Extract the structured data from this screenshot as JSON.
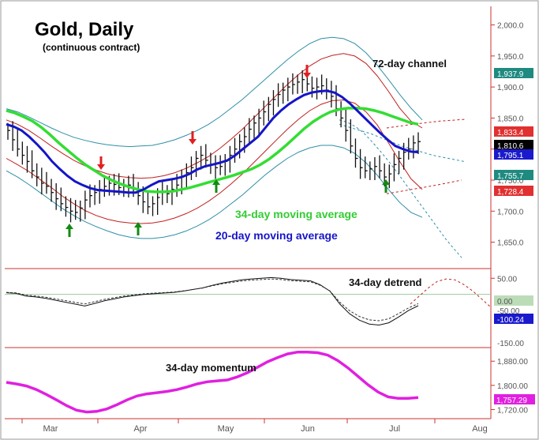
{
  "chart_data": {
    "type": "line",
    "title": "Gold, Daily",
    "subtitle": "(continuous contract)",
    "x_months": [
      "Mar",
      "Apr",
      "May",
      "Jun",
      "Jul",
      "Aug"
    ],
    "price_panel": {
      "ylim": [
        1610,
        2030
      ],
      "y_ticks": [
        "2,000.0",
        "1,950.0",
        "1,900.0",
        "1,850.0",
        "1,800.0",
        "1,750.0",
        "1,700.0",
        "1,650.0"
      ],
      "y_tick_values": [
        2000,
        1950,
        1900,
        1850,
        1800,
        1750,
        1700,
        1650
      ],
      "close_series": [
        1830,
        1815,
        1800,
        1790,
        1780,
        1765,
        1755,
        1745,
        1740,
        1730,
        1720,
        1712,
        1706,
        1700,
        1698,
        1705,
        1718,
        1725,
        1730,
        1735,
        1740,
        1745,
        1743,
        1738,
        1740,
        1742,
        1735,
        1725,
        1715,
        1707,
        1712,
        1722,
        1730,
        1728,
        1735,
        1742,
        1755,
        1762,
        1770,
        1785,
        1790,
        1782,
        1775,
        1770,
        1772,
        1780,
        1790,
        1800,
        1812,
        1820,
        1832,
        1842,
        1850,
        1860,
        1872,
        1880,
        1888,
        1895,
        1900,
        1904,
        1908,
        1912,
        1905,
        1898,
        1900,
        1902,
        1895,
        1885,
        1865,
        1850,
        1830,
        1805,
        1785,
        1770,
        1765,
        1768,
        1772,
        1765,
        1755,
        1760,
        1775,
        1785,
        1795,
        1800,
        1810,
        1812
      ],
      "series_20dma": [
        1840,
        1836,
        1830,
        1820,
        1808,
        1795,
        1780,
        1768,
        1757,
        1748,
        1742,
        1737,
        1734,
        1733,
        1732,
        1731,
        1730,
        1730,
        1735,
        1742,
        1748,
        1750,
        1752,
        1755,
        1760,
        1767,
        1772,
        1775,
        1778,
        1782,
        1790,
        1800,
        1810,
        1820,
        1835,
        1850,
        1862,
        1872,
        1880,
        1887,
        1891,
        1893,
        1894,
        1891,
        1884,
        1874,
        1862,
        1850,
        1838,
        1826,
        1815,
        1805,
        1800,
        1796,
        1795
      ],
      "series_34dma": [
        1862,
        1858,
        1852,
        1845,
        1835,
        1823,
        1810,
        1798,
        1786,
        1775,
        1766,
        1757,
        1750,
        1744,
        1739,
        1735,
        1732,
        1731,
        1731,
        1732,
        1735,
        1738,
        1742,
        1746,
        1750,
        1754,
        1758,
        1763,
        1768,
        1775,
        1784,
        1795,
        1807,
        1820,
        1833,
        1844,
        1853,
        1860,
        1864,
        1866,
        1866,
        1865,
        1862,
        1858,
        1853,
        1848,
        1843,
        1840
      ],
      "channel_upper_outer": [
        1865,
        1860,
        1852,
        1843,
        1834,
        1826,
        1819,
        1814,
        1810,
        1807,
        1805,
        1804,
        1805,
        1806,
        1810,
        1815,
        1822,
        1830,
        1840,
        1852,
        1866,
        1880,
        1896,
        1912,
        1928,
        1944,
        1958,
        1970,
        1978,
        1980,
        1978,
        1970,
        1955,
        1935,
        1912,
        1888,
        1866,
        1847
      ],
      "channel_upper_inner": [
        1847,
        1840,
        1830,
        1818,
        1805,
        1793,
        1782,
        1773,
        1766,
        1760,
        1756,
        1754,
        1753,
        1754,
        1757,
        1762,
        1769,
        1778,
        1788,
        1801,
        1816,
        1832,
        1850,
        1868,
        1886,
        1904,
        1920,
        1934,
        1945,
        1951,
        1954,
        1950,
        1938,
        1918,
        1893,
        1866,
        1845,
        1834
      ],
      "channel_lower_inner": [
        1785,
        1775,
        1764,
        1751,
        1738,
        1724,
        1712,
        1701,
        1693,
        1687,
        1683,
        1681,
        1680,
        1681,
        1684,
        1689,
        1696,
        1705,
        1716,
        1729,
        1744,
        1760,
        1778,
        1796,
        1814,
        1832,
        1848,
        1862,
        1872,
        1878,
        1879,
        1874,
        1860,
        1839,
        1810,
        1780,
        1752,
        1735
      ],
      "channel_lower_outer": [
        1765,
        1755,
        1743,
        1730,
        1717,
        1704,
        1693,
        1683,
        1675,
        1668,
        1662,
        1658,
        1656,
        1656,
        1658,
        1662,
        1668,
        1676,
        1686,
        1698,
        1712,
        1726,
        1742,
        1758,
        1772,
        1785,
        1795,
        1802,
        1806,
        1806,
        1802,
        1793,
        1778,
        1758,
        1735,
        1714,
        1698,
        1690
      ],
      "projection_upper": [
        1847,
        1843,
        1836,
        1826,
        1812,
        1797,
        1781,
        1764,
        1746,
        1728,
        1710,
        1692,
        1674,
        1656,
        1640,
        1625
      ],
      "projection_high": [
        1834,
        1840,
        1845,
        1848
      ],
      "projection_low": [
        1728,
        1735,
        1742,
        1750
      ],
      "cycle_tops_marked": [
        "Mar 17",
        "Apr 20",
        "Jun 1"
      ],
      "cycle_bottoms_marked": [
        "Mar 8",
        "Mar 31",
        "May 5",
        "Jun 29"
      ],
      "price_labels": [
        {
          "text": "1,937.9",
          "color": "#1f8a80"
        },
        {
          "text": "1,833.4",
          "color": "#e03030"
        },
        {
          "text": "1,810.6",
          "color": "#000000"
        },
        {
          "text": "1,795.1",
          "color": "#1a1acc"
        },
        {
          "text": "1,755.7",
          "color": "#1f8a80"
        },
        {
          "text": "1,728.4",
          "color": "#e03030"
        }
      ]
    },
    "annotations": {
      "channel": "72-day channel",
      "ma34": "34-day moving average",
      "ma20": "20-day moving average",
      "detrend": "34-day detrend",
      "momentum": "34-day momentum"
    },
    "detrend_panel": {
      "y_ticks": [
        "50.00",
        "0.00",
        "-50.00",
        "-150.00"
      ],
      "series": [
        5,
        3,
        -5,
        -8,
        -12,
        -18,
        -24,
        -30,
        -36,
        -28,
        -20,
        -14,
        -8,
        -4,
        0,
        2,
        4,
        6,
        10,
        15,
        20,
        28,
        35,
        40,
        45,
        48,
        50,
        52,
        50,
        46,
        44,
        42,
        30,
        10,
        -30,
        -60,
        -80,
        -92,
        -95,
        -88,
        -70,
        -50,
        -35
      ],
      "projection": [
        -30,
        -5,
        20,
        40,
        48,
        45,
        30,
        10,
        -15,
        -40
      ],
      "value_labels": [
        {
          "text": "0.00",
          "color": "#bcdcb8"
        },
        {
          "text": "-100.24",
          "color": "#1a1acc"
        }
      ]
    },
    "momentum_panel": {
      "y_ticks": [
        "1,880.00",
        "1,800.00",
        "1,720.00"
      ],
      "y_tick_values": [
        1880,
        1800,
        1720
      ],
      "ylim": [
        1690,
        1925
      ],
      "series": [
        1810,
        1805,
        1798,
        1786,
        1770,
        1752,
        1733,
        1718,
        1712,
        1714,
        1722,
        1736,
        1752,
        1765,
        1772,
        1776,
        1780,
        1786,
        1795,
        1805,
        1812,
        1815,
        1818,
        1828,
        1842,
        1860,
        1878,
        1892,
        1904,
        1910,
        1910,
        1908,
        1900,
        1882,
        1858,
        1830,
        1802,
        1778,
        1762,
        1757,
        1757,
        1760
      ],
      "value_labels": [
        {
          "text": "1,757.29",
          "color": "#e020e0"
        }
      ]
    }
  }
}
